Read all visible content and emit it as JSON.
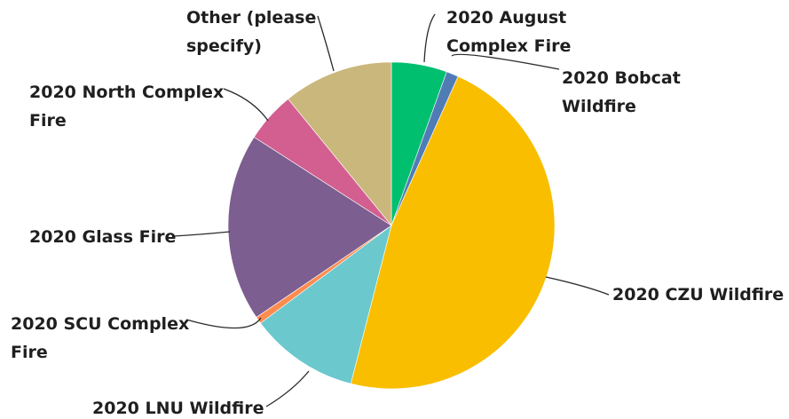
{
  "chart_data": {
    "type": "pie",
    "title": "",
    "slices": [
      {
        "label": "2020 August Complex Fire",
        "label_lines": [
          "2020 August",
          "Complex Fire"
        ],
        "value": 5.5,
        "color": "#00bf6f"
      },
      {
        "label": "2020 Bobcat Wildfire",
        "label_lines": [
          "2020 Bobcat",
          "Wildfire"
        ],
        "value": 1.2,
        "color": "#507cb6"
      },
      {
        "label": "2020 CZU Wildfire",
        "label_lines": [
          "2020 CZU Wildfire"
        ],
        "value": 47.3,
        "color": "#f9be00"
      },
      {
        "label": "2020 LNU Wildfire",
        "label_lines": [
          "2020 LNU Wildfire"
        ],
        "value": 10.8,
        "color": "#6bc8cd"
      },
      {
        "label": "2020 SCU Complex Fire",
        "label_lines": [
          "2020 SCU Complex",
          "Fire"
        ],
        "value": 0.7,
        "color": "#ff8b4f"
      },
      {
        "label": "2020 Glass Fire",
        "label_lines": [
          "2020 Glass Fire"
        ],
        "value": 18.6,
        "color": "#7d5e90"
      },
      {
        "label": "2020 North Complex Fire",
        "label_lines": [
          "2020 North Complex",
          "Fire"
        ],
        "value": 5.0,
        "color": "#d25f90"
      },
      {
        "label": "Other (please specify)",
        "label_lines": [
          "Other (please",
          "specify)"
        ],
        "value": 10.9,
        "color": "#c9b77c"
      }
    ]
  }
}
